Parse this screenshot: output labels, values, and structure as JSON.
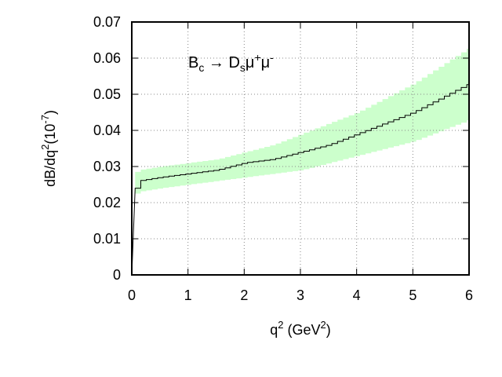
{
  "chart_data": {
    "type": "line",
    "xlabel": {
      "base": "q",
      "sup": "2",
      "rest_open": " (GeV",
      "rest_sup": "2",
      "rest_close": ")"
    },
    "ylabel": {
      "a": "dB/dq",
      "a_sup": "2",
      "b": "(10",
      "b_sup": "-7",
      "c": ")"
    },
    "annotation": {
      "p1": "B",
      "p1_sub": "c",
      "arrow": " → D",
      "p2_sub": "s",
      "mu1": "μ",
      "mu1_sup": "+",
      "mu2": "μ",
      "mu2_sup": "-"
    },
    "xlim": [
      0,
      6
    ],
    "ylim": [
      0,
      0.07
    ],
    "x_ticks": [
      "0",
      "1",
      "2",
      "3",
      "4",
      "5",
      "6"
    ],
    "y_ticks": [
      "0",
      "0.01",
      "0.02",
      "0.03",
      "0.04",
      "0.05",
      "0.06",
      "0.07"
    ],
    "grid": true,
    "central_line_color": "#000000",
    "band_color": "#ccffcc",
    "series": [
      {
        "x": [
          0.0,
          0.06,
          0.1,
          0.5,
          1.0,
          1.5,
          2.0,
          2.5,
          3.0,
          3.5,
          4.0,
          4.5,
          5.0,
          5.5,
          6.0
        ],
        "y": [
          0.0,
          0.024,
          0.026,
          0.027,
          0.028,
          0.029,
          0.031,
          0.032,
          0.034,
          0.036,
          0.039,
          0.042,
          0.045,
          0.049,
          0.053
        ],
        "lower": [
          0.0,
          0.0225,
          0.023,
          0.024,
          0.025,
          0.026,
          0.027,
          0.028,
          0.029,
          0.031,
          0.033,
          0.035,
          0.037,
          0.04,
          0.043
        ],
        "upper": [
          0.0,
          0.0285,
          0.029,
          0.03,
          0.031,
          0.032,
          0.034,
          0.036,
          0.039,
          0.042,
          0.045,
          0.049,
          0.053,
          0.058,
          0.063
        ]
      }
    ]
  }
}
